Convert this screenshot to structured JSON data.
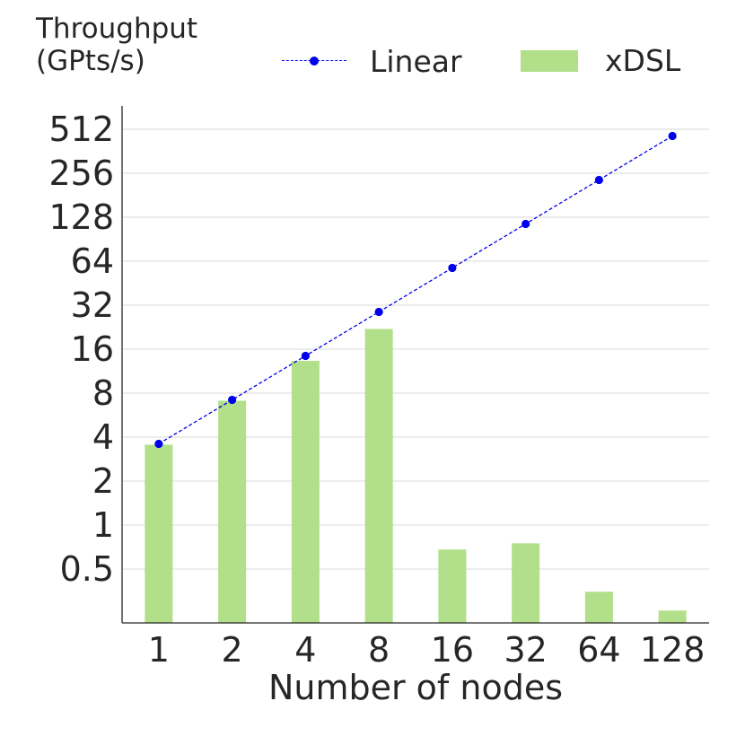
{
  "chart_data": {
    "type": "bar",
    "ylabel_lines": [
      "Throughput",
      "(GPts/s)"
    ],
    "xlabel": "Number of nodes",
    "categories": [
      "1",
      "2",
      "4",
      "8",
      "16",
      "32",
      "64",
      "128"
    ],
    "y_scale": "log2",
    "ylim": [
      0.25,
      600
    ],
    "yticks": [
      0.5,
      1,
      2,
      4,
      8,
      16,
      32,
      64,
      128,
      256,
      512
    ],
    "ytick_labels": [
      "0.5",
      "1",
      "2",
      "4",
      "8",
      "16",
      "32",
      "64",
      "128",
      "256",
      "512"
    ],
    "grid": "horizontal",
    "legend_position": "top",
    "series": [
      {
        "name": "Linear",
        "kind": "line",
        "style": "dashed-with-markers",
        "color": "#0000ee",
        "values": [
          3.6,
          7.2,
          14.4,
          28.8,
          57.6,
          115.2,
          230.4,
          460.8
        ]
      },
      {
        "name": "xDSL",
        "kind": "bar",
        "color": "#b2df8a",
        "values": [
          3.55,
          7.1,
          13.3,
          22.0,
          0.68,
          0.75,
          0.35,
          0.26
        ]
      }
    ]
  }
}
